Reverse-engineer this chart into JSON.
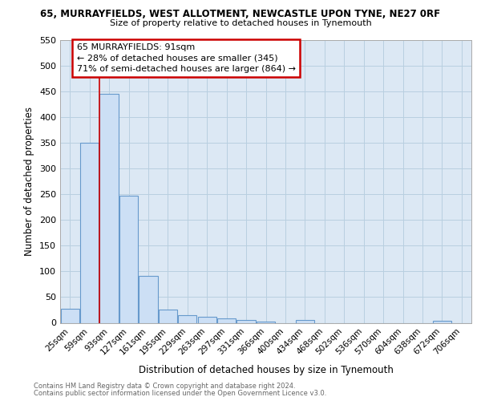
{
  "title_line1": "65, MURRAYFIELDS, WEST ALLOTMENT, NEWCASTLE UPON TYNE, NE27 0RF",
  "title_line2": "Size of property relative to detached houses in Tynemouth",
  "xlabel": "Distribution of detached houses by size in Tynemouth",
  "ylabel": "Number of detached properties",
  "categories": [
    "25sqm",
    "59sqm",
    "93sqm",
    "127sqm",
    "161sqm",
    "195sqm",
    "229sqm",
    "263sqm",
    "297sqm",
    "331sqm",
    "366sqm",
    "400sqm",
    "434sqm",
    "468sqm",
    "502sqm",
    "536sqm",
    "570sqm",
    "604sqm",
    "638sqm",
    "672sqm",
    "706sqm"
  ],
  "values": [
    28,
    350,
    445,
    248,
    92,
    25,
    15,
    12,
    8,
    5,
    3,
    0,
    5,
    0,
    0,
    0,
    0,
    0,
    0,
    4,
    0
  ],
  "bar_facecolor": "#ccdff5",
  "bar_edgecolor": "#6699cc",
  "grid_color": "#b8cfe0",
  "bg_color": "#dce8f4",
  "property_line_color": "#cc0000",
  "annotation_text_line1": "65 MURRAYFIELDS: 91sqm",
  "annotation_text_line2": "← 28% of detached houses are smaller (345)",
  "annotation_text_line3": "71% of semi-detached houses are larger (864) →",
  "ylim": [
    0,
    550
  ],
  "yticks": [
    0,
    50,
    100,
    150,
    200,
    250,
    300,
    350,
    400,
    450,
    500,
    550
  ],
  "footer_line1": "Contains HM Land Registry data © Crown copyright and database right 2024.",
  "footer_line2": "Contains public sector information licensed under the Open Government Licence v3.0.",
  "title1_fontsize": 8.5,
  "title2_fontsize": 8.0,
  "axis_label_fontsize": 8.5,
  "tick_fontsize": 7.5,
  "footer_fontsize": 6.0,
  "annot_fontsize": 8.0
}
